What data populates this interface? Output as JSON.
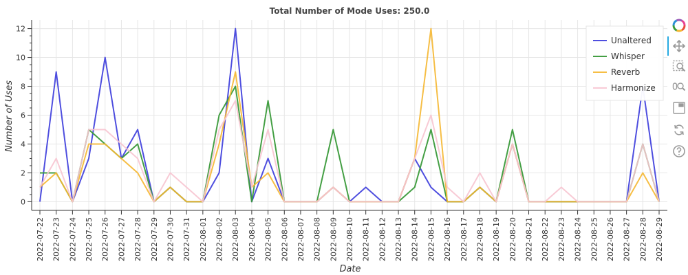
{
  "chart_data": {
    "type": "line",
    "title": "Total Number of Mode Uses: 250.0",
    "xlabel": "Date",
    "ylabel": "Number of Uses",
    "ylim": [
      -0.6,
      12.6
    ],
    "yticks": [
      0,
      2,
      4,
      6,
      8,
      10,
      12
    ],
    "grid": true,
    "legend_position": "top-right",
    "x": [
      "2022-07-22",
      "2022-07-23",
      "2022-07-24",
      "2022-07-25",
      "2022-07-26",
      "2022-07-27",
      "2022-07-28",
      "2022-07-29",
      "2022-07-30",
      "2022-07-31",
      "2022-08-01",
      "2022-08-02",
      "2022-08-03",
      "2022-08-04",
      "2022-08-05",
      "2022-08-06",
      "2022-08-07",
      "2022-08-08",
      "2022-08-09",
      "2022-08-10",
      "2022-08-11",
      "2022-08-12",
      "2022-08-13",
      "2022-08-14",
      "2022-08-15",
      "2022-08-16",
      "2022-08-17",
      "2022-08-18",
      "2022-08-19",
      "2022-08-20",
      "2022-08-21",
      "2022-08-22",
      "2022-08-23",
      "2022-08-24",
      "2022-08-25",
      "2022-08-26",
      "2022-08-27",
      "2022-08-28",
      "2022-08-29"
    ],
    "series": [
      {
        "name": "Unaltered",
        "color": "#4444dd",
        "opacity": 0.95,
        "values": [
          0,
          9,
          0,
          3,
          10,
          3,
          5,
          0,
          1,
          0,
          0,
          2,
          12,
          0,
          3,
          0,
          0,
          0,
          1,
          0,
          1,
          0,
          0,
          3,
          1,
          0,
          0,
          1,
          0,
          4,
          0,
          0,
          0,
          0,
          0,
          0,
          0,
          8,
          0
        ]
      },
      {
        "name": "Whisper",
        "color": "#3a9a3a",
        "opacity": 0.95,
        "values": [
          2,
          2,
          0,
          5,
          4,
          3,
          4,
          0,
          1,
          0,
          0,
          6,
          8,
          0,
          7,
          0,
          0,
          0,
          5,
          0,
          0,
          0,
          0,
          1,
          5,
          0,
          0,
          1,
          0,
          5,
          0,
          0,
          0,
          0,
          0,
          0,
          0,
          4,
          0
        ]
      },
      {
        "name": "Reverb",
        "color": "#f5b731",
        "opacity": 0.9,
        "values": [
          1,
          2,
          0,
          4,
          4,
          3,
          2,
          0,
          1,
          0,
          0,
          4,
          9,
          1,
          2,
          0,
          0,
          0,
          1,
          0,
          0,
          0,
          0,
          3,
          12,
          0,
          0,
          1,
          0,
          4,
          0,
          0,
          0,
          0,
          0,
          0,
          0,
          2,
          0
        ]
      },
      {
        "name": "Harmonize",
        "color": "#f7c4d0",
        "opacity": 0.9,
        "values": [
          1,
          3,
          0,
          5,
          5,
          4,
          3,
          0,
          2,
          1,
          0,
          5,
          7,
          1,
          5,
          0,
          0,
          0,
          1,
          0,
          0,
          0,
          0,
          3,
          6,
          1,
          0,
          2,
          0,
          4,
          0,
          0,
          1,
          0,
          0,
          0,
          0,
          4,
          0
        ]
      }
    ]
  },
  "toolbar": {
    "icons": [
      "bokeh-logo-icon",
      "pan-icon",
      "box-zoom-icon",
      "wheel-zoom-icon",
      "save-icon",
      "reset-icon",
      "help-icon"
    ]
  }
}
